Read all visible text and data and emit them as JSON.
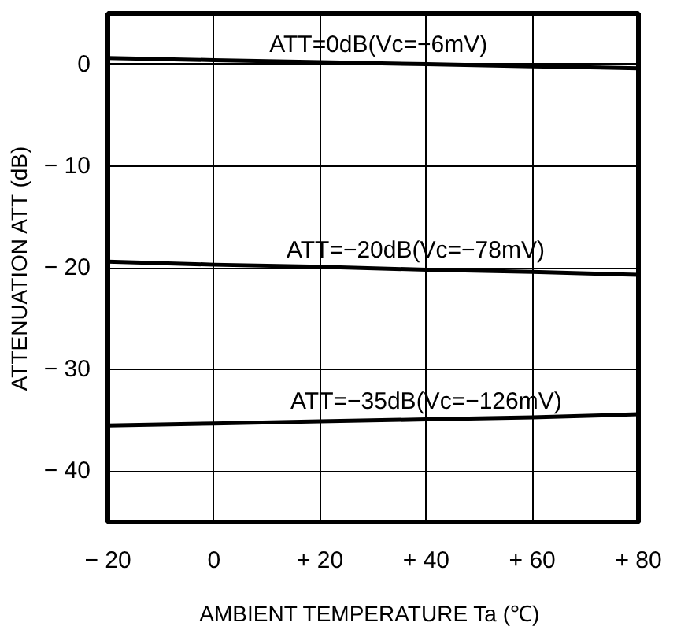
{
  "chart_data": {
    "type": "line",
    "xlabel": "AMBIENT TEMPERATURE  Ta (℃)",
    "ylabel": "ATTENUATION ATT (dB)",
    "series": [
      {
        "color": "#000000",
        "x": [
          -20,
          0,
          20,
          40,
          60,
          80
        ],
        "values": [
          0.6,
          0.4,
          0.2,
          0,
          -0.2,
          -0.4
        ]
      },
      {
        "color": "#000000",
        "x": [
          -20,
          0,
          20,
          40,
          60,
          80
        ],
        "values": [
          -19.4,
          -19.7,
          -19.9,
          -20.2,
          -20.4,
          -20.7
        ]
      },
      {
        "color": "#000000",
        "x": [
          -20,
          0,
          20,
          40,
          60,
          80
        ],
        "values": [
          -35.5,
          -35.3,
          -35.1,
          -34.9,
          -34.7,
          -34.4
        ]
      }
    ],
    "annotations": [
      {
        "text": "ATT=0dB(Vc=−6mV)",
        "x": 31,
        "y": 0.1
      },
      {
        "text": "ATT=−20dB(Vc=−78mV)",
        "x": 38,
        "y": -20.1
      },
      {
        "text": "ATT=−35dB(Vc=−126mV)",
        "x": 40,
        "y": -34.9
      }
    ],
    "xlim": [
      -20,
      80
    ],
    "ylim": [
      -45,
      5
    ],
    "xticks": [
      {
        "value": -20,
        "label": "− 20"
      },
      0,
      {
        "value": 20,
        "label": "+ 20"
      },
      {
        "value": 40,
        "label": "+ 40"
      },
      {
        "value": 60,
        "label": "+ 60"
      },
      {
        "value": 80,
        "label": "+ 80"
      }
    ],
    "yticks": [
      0,
      {
        "value": -10,
        "label": "− 10"
      },
      {
        "value": -20,
        "label": "− 20"
      },
      {
        "value": -30,
        "label": "− 30"
      },
      {
        "value": -40,
        "label": "− 40"
      }
    ],
    "grid": true,
    "line_style": "solid",
    "marker": "none"
  }
}
